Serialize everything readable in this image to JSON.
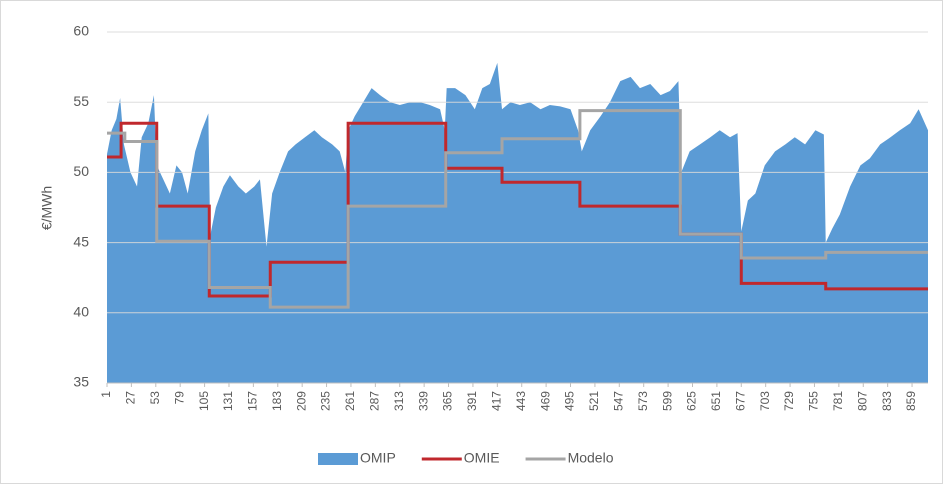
{
  "chart_data": {
    "type": "area-step",
    "ylabel": "€/MWh",
    "xlim": [
      1,
      876
    ],
    "ylim": [
      35,
      60
    ],
    "yticks": [
      35,
      40,
      45,
      50,
      55,
      60
    ],
    "xticks": [
      1,
      27,
      53,
      79,
      105,
      131,
      157,
      183,
      209,
      235,
      261,
      287,
      313,
      339,
      365,
      391,
      417,
      443,
      469,
      495,
      521,
      547,
      573,
      599,
      625,
      651,
      677,
      703,
      729,
      755,
      781,
      807,
      833,
      859
    ],
    "grid": true,
    "legend": "bottom",
    "series": [
      {
        "name": "OMIP",
        "type": "area",
        "color": "#5b9bd5",
        "x": [
          1,
          6,
          11,
          15,
          19,
          26,
          33,
          38,
          45,
          51,
          54,
          61,
          68,
          75,
          81,
          87,
          95,
          102,
          109,
          111,
          117,
          125,
          132,
          141,
          149,
          158,
          164,
          171,
          177,
          185,
          194,
          202,
          212,
          222,
          230,
          241,
          249,
          255,
          258,
          265,
          274,
          283,
          292,
          303,
          313,
          324,
          335,
          345,
          356,
          361,
          363,
          372,
          383,
          393,
          401,
          409,
          417,
          422,
          431,
          441,
          452,
          463,
          473,
          484,
          495,
          503,
          507,
          516,
          527,
          537,
          548,
          559,
          569,
          580,
          591,
          601,
          610,
          613,
          622,
          633,
          644,
          654,
          665,
          673,
          677,
          684,
          692,
          702,
          713,
          724,
          734,
          745,
          756,
          765,
          767,
          774,
          782,
          793,
          804,
          814,
          825,
          836,
          846,
          857,
          866,
          876
        ],
        "values": [
          51.3,
          53,
          53.8,
          55.3,
          52,
          50,
          49,
          52.5,
          53.5,
          55.5,
          50.5,
          49.5,
          48.5,
          50.5,
          50,
          48.5,
          51.5,
          53,
          54.2,
          45.5,
          47.5,
          49,
          49.8,
          49,
          48.5,
          49,
          49.5,
          44.7,
          48.5,
          50,
          51.5,
          52,
          52.5,
          53,
          52.5,
          52,
          51.5,
          50,
          53,
          54,
          55,
          56,
          55.5,
          55,
          54.8,
          55,
          55,
          54.8,
          54.5,
          53,
          56,
          56,
          55.5,
          54.5,
          56,
          56.3,
          57.8,
          54.5,
          55,
          54.8,
          55,
          54.5,
          54.8,
          54.7,
          54.5,
          53,
          51.5,
          53,
          54,
          55,
          56.5,
          56.8,
          56,
          56.3,
          55.5,
          55.8,
          56.5,
          50,
          51.5,
          52,
          52.5,
          53,
          52.5,
          52.8,
          45.8,
          48,
          48.5,
          50.5,
          51.5,
          52,
          52.5,
          52,
          53,
          52.7,
          45,
          46,
          47,
          49,
          50.5,
          51,
          52,
          52.5,
          53,
          53.5,
          54.5,
          53
        ]
      },
      {
        "name": "OMIE",
        "type": "line",
        "color": "#c0282d",
        "x": [
          1,
          16,
          16,
          54,
          54,
          110,
          110,
          175,
          175,
          258,
          258,
          362,
          362,
          422,
          422,
          505,
          505,
          612,
          612,
          677,
          677,
          767,
          767,
          876
        ],
        "values": [
          51.1,
          51.1,
          53.5,
          53.5,
          47.6,
          47.6,
          41.2,
          41.2,
          43.6,
          43.6,
          53.5,
          53.5,
          50.3,
          50.3,
          49.3,
          49.3,
          47.6,
          47.6,
          45.6,
          45.6,
          42.1,
          42.1,
          41.7,
          41.7
        ]
      },
      {
        "name": "Modelo",
        "type": "line",
        "color": "#a5a5a5",
        "x": [
          1,
          20,
          20,
          54,
          54,
          110,
          110,
          175,
          175,
          258,
          258,
          362,
          362,
          422,
          422,
          505,
          505,
          612,
          612,
          677,
          677,
          767,
          767,
          876
        ],
        "values": [
          52.8,
          52.8,
          52.2,
          52.2,
          45.1,
          45.1,
          41.8,
          41.8,
          40.4,
          40.4,
          47.6,
          47.6,
          51.4,
          51.4,
          52.4,
          52.4,
          54.4,
          54.4,
          45.6,
          45.6,
          43.9,
          43.9,
          44.3,
          44.3
        ]
      }
    ]
  }
}
